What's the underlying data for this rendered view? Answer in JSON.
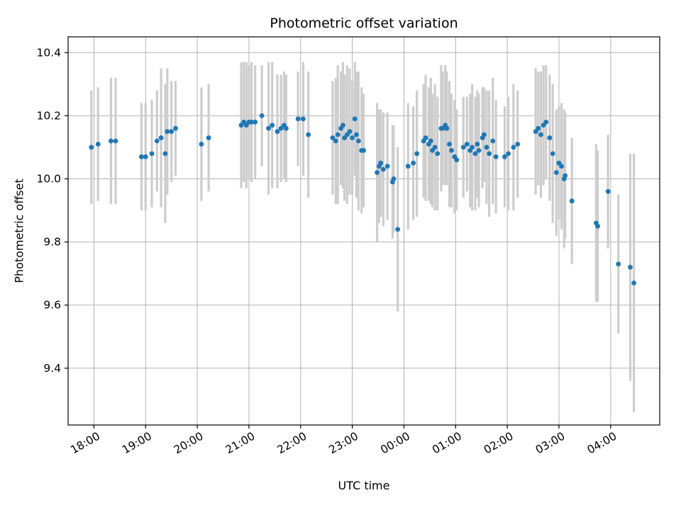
{
  "figure": {
    "background": "#ffffff"
  },
  "chart_data": {
    "type": "scatter",
    "title": "Photometric offset variation",
    "xlabel": "UTC time",
    "ylabel": "Photometric offset",
    "legend": "none",
    "grid": true,
    "x_unit_note": "hours UTC, values past midnight encoded as 24+",
    "xlim": [
      17.5,
      28.95
    ],
    "ylim": [
      9.22,
      10.45
    ],
    "point_color": "#1f77b4",
    "errorbar_color": "#cdcdcd",
    "grid_color": "#b2b2b2",
    "axis_color": "#000000",
    "x_ticks": [
      {
        "value": 18,
        "label": "18:00"
      },
      {
        "value": 19,
        "label": "19:00"
      },
      {
        "value": 20,
        "label": "20:00"
      },
      {
        "value": 21,
        "label": "21:00"
      },
      {
        "value": 22,
        "label": "22:00"
      },
      {
        "value": 23,
        "label": "23:00"
      },
      {
        "value": 24,
        "label": "00:00"
      },
      {
        "value": 25,
        "label": "01:00"
      },
      {
        "value": 26,
        "label": "02:00"
      },
      {
        "value": 27,
        "label": "03:00"
      },
      {
        "value": 28,
        "label": "04:00"
      }
    ],
    "y_ticks": [
      {
        "value": 9.4,
        "label": "9.4"
      },
      {
        "value": 9.6,
        "label": "9.6"
      },
      {
        "value": 9.8,
        "label": "9.8"
      },
      {
        "value": 10.0,
        "label": "10.0"
      },
      {
        "value": 10.2,
        "label": "10.2"
      },
      {
        "value": 10.4,
        "label": "10.4"
      }
    ],
    "points_format": [
      "time_hours",
      "offset",
      "error_halfwidth"
    ],
    "points": [
      [
        17.95,
        10.1,
        0.18
      ],
      [
        18.08,
        10.11,
        0.18
      ],
      [
        18.33,
        10.12,
        0.2
      ],
      [
        18.42,
        10.12,
        0.2
      ],
      [
        18.92,
        10.07,
        0.17
      ],
      [
        19.0,
        10.07,
        0.17
      ],
      [
        19.12,
        10.08,
        0.17
      ],
      [
        19.22,
        10.12,
        0.16
      ],
      [
        19.3,
        10.13,
        0.22
      ],
      [
        19.38,
        10.08,
        0.22
      ],
      [
        19.42,
        10.15,
        0.2
      ],
      [
        19.5,
        10.15,
        0.16
      ],
      [
        19.58,
        10.16,
        0.15
      ],
      [
        20.08,
        10.11,
        0.18
      ],
      [
        20.22,
        10.13,
        0.17
      ],
      [
        20.85,
        10.17,
        0.2
      ],
      [
        20.9,
        10.18,
        0.19
      ],
      [
        20.95,
        10.17,
        0.2
      ],
      [
        21.0,
        10.18,
        0.18
      ],
      [
        21.05,
        10.18,
        0.19
      ],
      [
        21.12,
        10.18,
        0.18
      ],
      [
        21.25,
        10.2,
        0.16
      ],
      [
        21.38,
        10.16,
        0.21
      ],
      [
        21.45,
        10.17,
        0.2
      ],
      [
        21.55,
        10.15,
        0.18
      ],
      [
        21.62,
        10.16,
        0.17
      ],
      [
        21.68,
        10.17,
        0.17
      ],
      [
        21.72,
        10.16,
        0.17
      ],
      [
        21.95,
        10.19,
        0.15
      ],
      [
        22.05,
        10.19,
        0.18
      ],
      [
        22.15,
        10.14,
        0.2
      ],
      [
        22.62,
        10.13,
        0.18
      ],
      [
        22.68,
        10.12,
        0.2
      ],
      [
        22.72,
        10.14,
        0.22
      ],
      [
        22.78,
        10.16,
        0.18
      ],
      [
        22.82,
        10.17,
        0.2
      ],
      [
        22.85,
        10.13,
        0.2
      ],
      [
        22.9,
        10.14,
        0.22
      ],
      [
        22.95,
        10.15,
        0.2
      ],
      [
        23.0,
        10.13,
        0.18
      ],
      [
        23.05,
        10.19,
        0.18
      ],
      [
        23.08,
        10.14,
        0.2
      ],
      [
        23.12,
        10.12,
        0.22
      ],
      [
        23.18,
        10.09,
        0.2
      ],
      [
        23.22,
        10.09,
        0.18
      ],
      [
        23.48,
        10.02,
        0.22
      ],
      [
        23.52,
        10.04,
        0.18
      ],
      [
        23.55,
        10.05,
        0.17
      ],
      [
        23.6,
        10.03,
        0.18
      ],
      [
        23.68,
        10.04,
        0.17
      ],
      [
        23.78,
        9.99,
        0.18
      ],
      [
        23.8,
        10.0,
        0.17
      ],
      [
        23.88,
        9.84,
        0.26
      ],
      [
        24.08,
        10.04,
        0.2
      ],
      [
        24.18,
        10.05,
        0.18
      ],
      [
        24.25,
        10.08,
        0.2
      ],
      [
        24.38,
        10.12,
        0.18
      ],
      [
        24.42,
        10.13,
        0.2
      ],
      [
        24.48,
        10.11,
        0.18
      ],
      [
        24.52,
        10.12,
        0.2
      ],
      [
        24.55,
        10.09,
        0.18
      ],
      [
        24.6,
        10.1,
        0.2
      ],
      [
        24.65,
        10.08,
        0.18
      ],
      [
        24.72,
        10.16,
        0.2
      ],
      [
        24.75,
        10.16,
        0.18
      ],
      [
        24.8,
        10.17,
        0.19
      ],
      [
        24.83,
        10.16,
        0.18
      ],
      [
        24.88,
        10.11,
        0.2
      ],
      [
        24.92,
        10.09,
        0.18
      ],
      [
        24.98,
        10.07,
        0.18
      ],
      [
        25.02,
        10.06,
        0.16
      ],
      [
        25.15,
        10.1,
        0.16
      ],
      [
        25.22,
        10.11,
        0.15
      ],
      [
        25.28,
        10.09,
        0.18
      ],
      [
        25.32,
        10.1,
        0.2
      ],
      [
        25.38,
        10.08,
        0.18
      ],
      [
        25.42,
        10.11,
        0.17
      ],
      [
        25.45,
        10.09,
        0.18
      ],
      [
        25.52,
        10.13,
        0.16
      ],
      [
        25.55,
        10.14,
        0.15
      ],
      [
        25.6,
        10.1,
        0.18
      ],
      [
        25.65,
        10.08,
        0.2
      ],
      [
        25.72,
        10.12,
        0.2
      ],
      [
        25.78,
        10.07,
        0.18
      ],
      [
        25.95,
        10.07,
        0.16
      ],
      [
        26.02,
        10.08,
        0.18
      ],
      [
        26.12,
        10.1,
        0.2
      ],
      [
        26.2,
        10.11,
        0.17
      ],
      [
        26.55,
        10.15,
        0.2
      ],
      [
        26.6,
        10.16,
        0.18
      ],
      [
        26.65,
        10.14,
        0.2
      ],
      [
        26.7,
        10.17,
        0.19
      ],
      [
        26.75,
        10.18,
        0.18
      ],
      [
        26.82,
        10.13,
        0.2
      ],
      [
        26.88,
        10.08,
        0.22
      ],
      [
        26.95,
        10.02,
        0.2
      ],
      [
        27.0,
        10.05,
        0.18
      ],
      [
        27.05,
        10.04,
        0.2
      ],
      [
        27.1,
        10.0,
        0.22
      ],
      [
        27.12,
        10.01,
        0.2
      ],
      [
        27.25,
        9.93,
        0.2
      ],
      [
        27.72,
        9.86,
        0.25
      ],
      [
        27.75,
        9.85,
        0.24
      ],
      [
        27.95,
        9.96,
        0.18
      ],
      [
        28.15,
        9.73,
        0.22
      ],
      [
        28.38,
        9.72,
        0.36
      ],
      [
        28.45,
        9.67,
        0.41
      ]
    ]
  }
}
